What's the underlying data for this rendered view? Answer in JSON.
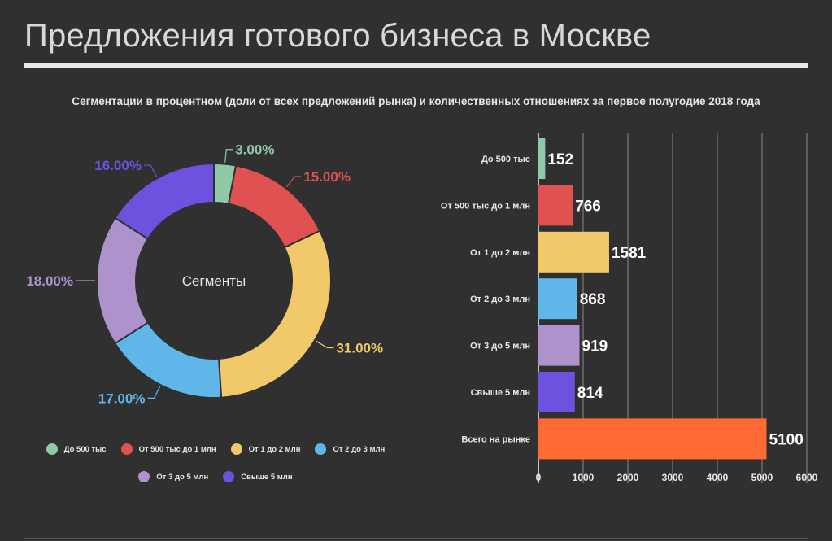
{
  "header": {
    "title": "Предложения готового бизнеса в Москве",
    "subtitle": "Сегментации в процентном (доли от всех предложений рынка) и количественных отношениях за первое полугодие 2018 года"
  },
  "chart_data": [
    {
      "type": "pie",
      "center_label": "Сегменты",
      "slices": [
        {
          "label": "До 500 тыс",
          "value": 3.0,
          "display": "3.00%",
          "color": "#8fc9a7"
        },
        {
          "label": "От 500 тыс до 1 млн",
          "value": 15.0,
          "display": "15.00%",
          "color": "#e05151"
        },
        {
          "label": "От 1 до 2 млн",
          "value": 31.0,
          "display": "31.00%",
          "color": "#f2c96a"
        },
        {
          "label": "От 2 до 3 млн",
          "value": 17.0,
          "display": "17.00%",
          "color": "#5fb6e8"
        },
        {
          "label": "От 3 до 5 млн",
          "value": 18.0,
          "display": "18.00%",
          "color": "#ae92cc"
        },
        {
          "label": "Свыше 5 млн",
          "value": 16.0,
          "display": "16.00%",
          "color": "#6f51e0"
        }
      ],
      "legend_position": "bottom"
    },
    {
      "type": "bar",
      "orientation": "horizontal",
      "categories": [
        "До 500 тыс",
        "От 500 тыс до 1 млн",
        "От 1 до 2 млн",
        "От 2 до 3 млн",
        "От 3 до 5 млн",
        "Свыше 5 млн",
        "Всего на рынке"
      ],
      "values": [
        152,
        766,
        1581,
        868,
        919,
        814,
        5100
      ],
      "colors": [
        "#8fc9a7",
        "#e05151",
        "#f2c96a",
        "#5fb6e8",
        "#ae92cc",
        "#6f51e0",
        "#ff6b35"
      ],
      "xlim": [
        0,
        6000
      ],
      "xticks": [
        "0",
        "1000",
        "2000",
        "3000",
        "4000",
        "5000",
        "6000"
      ],
      "grid": true
    }
  ]
}
